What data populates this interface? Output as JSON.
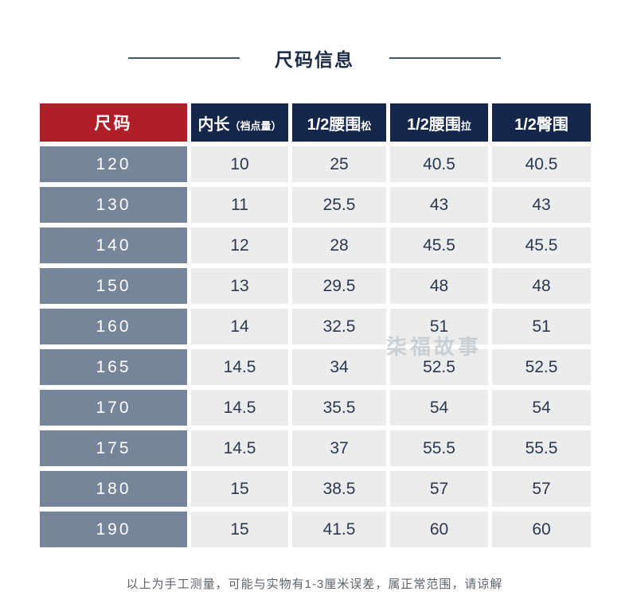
{
  "page": {
    "title": "尺码信息",
    "footer_note": "以上为手工测量，可能与实物有1-3厘米误差，属正常范围，请谅解",
    "watermark": "柒福故事"
  },
  "colors": {
    "accent_red": "#b01f27",
    "header_navy": "#14264a",
    "size_column_slate": "#76859a",
    "cell_gray": "#ececec",
    "title_navy": "#1c2b45",
    "value_text": "#2b3850",
    "divider_line": "#44546e",
    "footer_gray": "#5f6368",
    "watermark_gray": "#c4c7cb"
  },
  "table": {
    "header": {
      "size": "尺码",
      "inner_length": "内长",
      "inner_length_note": "（裆点量）",
      "waist_relaxed": "1/2腰围",
      "waist_relaxed_tag": "松",
      "waist_stretched": "1/2腰围",
      "waist_stretched_tag": "拉",
      "hip": "1/2臀围"
    },
    "rows": [
      {
        "size": "120",
        "inner_length": "10",
        "waist_relaxed": "25",
        "waist_stretched": "40.5",
        "hip": "40.5"
      },
      {
        "size": "130",
        "inner_length": "11",
        "waist_relaxed": "25.5",
        "waist_stretched": "43",
        "hip": "43"
      },
      {
        "size": "140",
        "inner_length": "12",
        "waist_relaxed": "28",
        "waist_stretched": "45.5",
        "hip": "45.5"
      },
      {
        "size": "150",
        "inner_length": "13",
        "waist_relaxed": "29.5",
        "waist_stretched": "48",
        "hip": "48"
      },
      {
        "size": "160",
        "inner_length": "14",
        "waist_relaxed": "32.5",
        "waist_stretched": "51",
        "hip": "51"
      },
      {
        "size": "165",
        "inner_length": "14.5",
        "waist_relaxed": "34",
        "waist_stretched": "52.5",
        "hip": "52.5"
      },
      {
        "size": "170",
        "inner_length": "14.5",
        "waist_relaxed": "35.5",
        "waist_stretched": "54",
        "hip": "54"
      },
      {
        "size": "175",
        "inner_length": "14.5",
        "waist_relaxed": "37",
        "waist_stretched": "55.5",
        "hip": "55.5"
      },
      {
        "size": "180",
        "inner_length": "15",
        "waist_relaxed": "38.5",
        "waist_stretched": "57",
        "hip": "57"
      },
      {
        "size": "190",
        "inner_length": "15",
        "waist_relaxed": "41.5",
        "waist_stretched": "60",
        "hip": "60"
      }
    ]
  },
  "chart_data": {
    "type": "table",
    "title": "尺码信息",
    "columns": [
      "尺码",
      "内长（裆点量）",
      "1/2腰围松",
      "1/2腰围拉",
      "1/2臀围"
    ],
    "rows": [
      [
        "120",
        "10",
        "25",
        "40.5",
        "40.5"
      ],
      [
        "130",
        "11",
        "25.5",
        "43",
        "43"
      ],
      [
        "140",
        "12",
        "28",
        "45.5",
        "45.5"
      ],
      [
        "150",
        "13",
        "29.5",
        "48",
        "48"
      ],
      [
        "160",
        "14",
        "32.5",
        "51",
        "51"
      ],
      [
        "165",
        "14.5",
        "34",
        "52.5",
        "52.5"
      ],
      [
        "170",
        "14.5",
        "35.5",
        "54",
        "54"
      ],
      [
        "175",
        "14.5",
        "37",
        "55.5",
        "55.5"
      ],
      [
        "180",
        "15",
        "38.5",
        "57",
        "57"
      ],
      [
        "190",
        "15",
        "41.5",
        "60",
        "60"
      ]
    ],
    "footnote": "以上为手工测量，可能与实物有1-3厘米误差，属正常范围，请谅解"
  }
}
